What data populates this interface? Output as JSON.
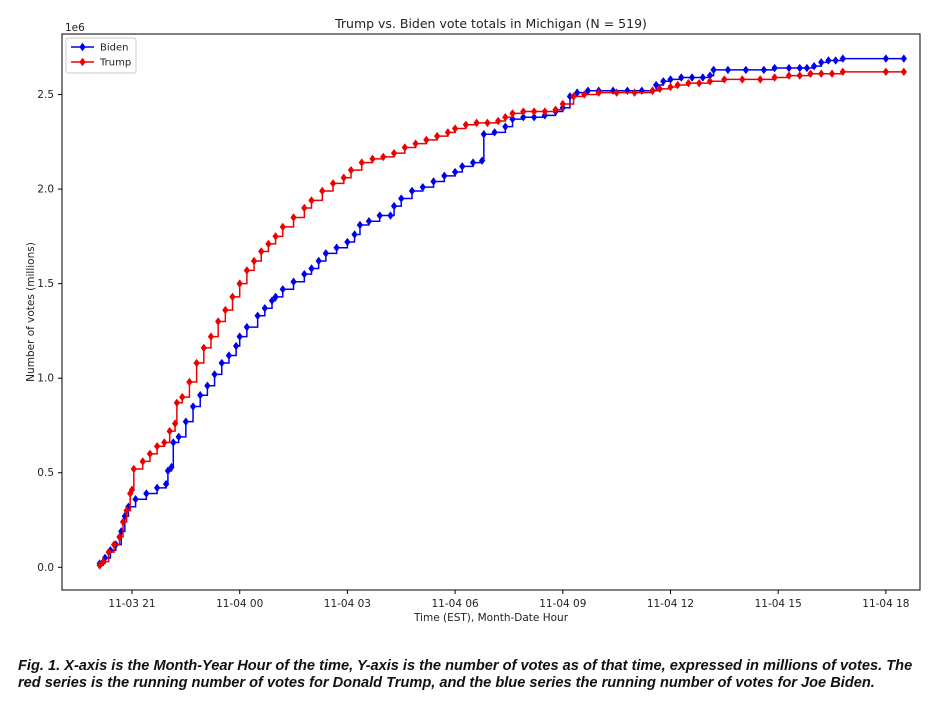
{
  "chart_data": {
    "type": "line",
    "title": "Trump vs. Biden vote totals in Michigan (N = 519)",
    "xlabel": "Time (EST), Month-Date Hour",
    "ylabel": "Number of votes (millions)",
    "y_offset_label": "1e6",
    "x_unit": "hours after 11-03 00:00 EST",
    "xlim": [
      19.05,
      42.95
    ],
    "ylim": [
      -0.12,
      2.82
    ],
    "x_ticks": [
      {
        "value": 21,
        "label": "11-03 21"
      },
      {
        "value": 24,
        "label": "11-04 00"
      },
      {
        "value": 27,
        "label": "11-04 03"
      },
      {
        "value": 30,
        "label": "11-04 06"
      },
      {
        "value": 33,
        "label": "11-04 09"
      },
      {
        "value": 36,
        "label": "11-04 12"
      },
      {
        "value": 39,
        "label": "11-04 15"
      },
      {
        "value": 42,
        "label": "11-04 18"
      }
    ],
    "y_ticks": [
      {
        "value": 0.0,
        "label": "0.0"
      },
      {
        "value": 0.5,
        "label": "0.5"
      },
      {
        "value": 1.0,
        "label": "1.0"
      },
      {
        "value": 1.5,
        "label": "1.5"
      },
      {
        "value": 2.0,
        "label": "2.0"
      },
      {
        "value": 2.5,
        "label": "2.5"
      }
    ],
    "legend_position": "top-left",
    "series": [
      {
        "name": "Biden",
        "color": "#0000ee",
        "marker": "diamond",
        "points": [
          [
            20.1,
            0.02
          ],
          [
            20.25,
            0.05
          ],
          [
            20.4,
            0.09
          ],
          [
            20.55,
            0.12
          ],
          [
            20.7,
            0.19
          ],
          [
            20.8,
            0.27
          ],
          [
            20.9,
            0.32
          ],
          [
            21.1,
            0.36
          ],
          [
            21.4,
            0.39
          ],
          [
            21.7,
            0.42
          ],
          [
            21.95,
            0.44
          ],
          [
            22.0,
            0.51
          ],
          [
            22.1,
            0.53
          ],
          [
            22.15,
            0.66
          ],
          [
            22.3,
            0.69
          ],
          [
            22.5,
            0.77
          ],
          [
            22.7,
            0.85
          ],
          [
            22.9,
            0.91
          ],
          [
            23.1,
            0.96
          ],
          [
            23.3,
            1.02
          ],
          [
            23.5,
            1.08
          ],
          [
            23.7,
            1.12
          ],
          [
            23.9,
            1.17
          ],
          [
            24.0,
            1.22
          ],
          [
            24.2,
            1.27
          ],
          [
            24.5,
            1.33
          ],
          [
            24.7,
            1.37
          ],
          [
            24.9,
            1.41
          ],
          [
            25.0,
            1.43
          ],
          [
            25.2,
            1.47
          ],
          [
            25.5,
            1.51
          ],
          [
            25.8,
            1.55
          ],
          [
            26.0,
            1.58
          ],
          [
            26.2,
            1.62
          ],
          [
            26.4,
            1.66
          ],
          [
            26.7,
            1.69
          ],
          [
            27.0,
            1.72
          ],
          [
            27.2,
            1.76
          ],
          [
            27.35,
            1.81
          ],
          [
            27.6,
            1.83
          ],
          [
            27.9,
            1.86
          ],
          [
            28.2,
            1.86
          ],
          [
            28.3,
            1.91
          ],
          [
            28.5,
            1.95
          ],
          [
            28.8,
            1.99
          ],
          [
            29.1,
            2.01
          ],
          [
            29.4,
            2.04
          ],
          [
            29.7,
            2.07
          ],
          [
            30.0,
            2.09
          ],
          [
            30.2,
            2.12
          ],
          [
            30.5,
            2.14
          ],
          [
            30.75,
            2.15
          ],
          [
            30.8,
            2.29
          ],
          [
            31.1,
            2.3
          ],
          [
            31.4,
            2.33
          ],
          [
            31.6,
            2.37
          ],
          [
            31.9,
            2.38
          ],
          [
            32.2,
            2.38
          ],
          [
            32.5,
            2.39
          ],
          [
            32.8,
            2.41
          ],
          [
            33.0,
            2.43
          ],
          [
            33.2,
            2.49
          ],
          [
            33.4,
            2.51
          ],
          [
            33.7,
            2.52
          ],
          [
            34.0,
            2.52
          ],
          [
            34.4,
            2.52
          ],
          [
            34.8,
            2.52
          ],
          [
            35.2,
            2.52
          ],
          [
            35.5,
            2.52
          ],
          [
            35.6,
            2.55
          ],
          [
            35.8,
            2.57
          ],
          [
            36.0,
            2.58
          ],
          [
            36.3,
            2.59
          ],
          [
            36.6,
            2.59
          ],
          [
            36.9,
            2.59
          ],
          [
            37.1,
            2.6
          ],
          [
            37.2,
            2.63
          ],
          [
            37.6,
            2.63
          ],
          [
            38.1,
            2.63
          ],
          [
            38.6,
            2.63
          ],
          [
            38.9,
            2.64
          ],
          [
            39.3,
            2.64
          ],
          [
            39.6,
            2.64
          ],
          [
            39.8,
            2.64
          ],
          [
            40.0,
            2.65
          ],
          [
            40.2,
            2.67
          ],
          [
            40.4,
            2.68
          ],
          [
            40.6,
            2.68
          ],
          [
            40.8,
            2.69
          ],
          [
            42.0,
            2.69
          ],
          [
            42.5,
            2.69
          ]
        ]
      },
      {
        "name": "Trump",
        "color": "#ee0000",
        "marker": "diamond",
        "points": [
          [
            20.1,
            0.01
          ],
          [
            20.2,
            0.03
          ],
          [
            20.35,
            0.08
          ],
          [
            20.5,
            0.12
          ],
          [
            20.65,
            0.16
          ],
          [
            20.75,
            0.24
          ],
          [
            20.85,
            0.3
          ],
          [
            20.95,
            0.39
          ],
          [
            21.0,
            0.41
          ],
          [
            21.05,
            0.52
          ],
          [
            21.3,
            0.56
          ],
          [
            21.5,
            0.6
          ],
          [
            21.7,
            0.64
          ],
          [
            21.9,
            0.66
          ],
          [
            22.05,
            0.72
          ],
          [
            22.2,
            0.76
          ],
          [
            22.25,
            0.87
          ],
          [
            22.4,
            0.9
          ],
          [
            22.6,
            0.98
          ],
          [
            22.8,
            1.08
          ],
          [
            23.0,
            1.16
          ],
          [
            23.2,
            1.22
          ],
          [
            23.4,
            1.3
          ],
          [
            23.6,
            1.36
          ],
          [
            23.8,
            1.43
          ],
          [
            24.0,
            1.5
          ],
          [
            24.2,
            1.57
          ],
          [
            24.4,
            1.62
          ],
          [
            24.6,
            1.67
          ],
          [
            24.8,
            1.71
          ],
          [
            25.0,
            1.75
          ],
          [
            25.2,
            1.8
          ],
          [
            25.5,
            1.85
          ],
          [
            25.8,
            1.9
          ],
          [
            26.0,
            1.94
          ],
          [
            26.3,
            1.99
          ],
          [
            26.6,
            2.03
          ],
          [
            26.9,
            2.06
          ],
          [
            27.1,
            2.1
          ],
          [
            27.4,
            2.14
          ],
          [
            27.7,
            2.16
          ],
          [
            28.0,
            2.17
          ],
          [
            28.3,
            2.19
          ],
          [
            28.6,
            2.22
          ],
          [
            28.9,
            2.24
          ],
          [
            29.2,
            2.26
          ],
          [
            29.5,
            2.28
          ],
          [
            29.8,
            2.3
          ],
          [
            30.0,
            2.32
          ],
          [
            30.3,
            2.34
          ],
          [
            30.6,
            2.35
          ],
          [
            30.9,
            2.35
          ],
          [
            31.2,
            2.36
          ],
          [
            31.4,
            2.38
          ],
          [
            31.6,
            2.4
          ],
          [
            31.9,
            2.41
          ],
          [
            32.2,
            2.41
          ],
          [
            32.5,
            2.41
          ],
          [
            32.8,
            2.42
          ],
          [
            33.0,
            2.45
          ],
          [
            33.3,
            2.49
          ],
          [
            33.6,
            2.5
          ],
          [
            34.0,
            2.51
          ],
          [
            34.5,
            2.51
          ],
          [
            35.0,
            2.51
          ],
          [
            35.5,
            2.52
          ],
          [
            35.7,
            2.53
          ],
          [
            36.0,
            2.54
          ],
          [
            36.2,
            2.55
          ],
          [
            36.5,
            2.56
          ],
          [
            36.8,
            2.56
          ],
          [
            37.1,
            2.57
          ],
          [
            37.5,
            2.58
          ],
          [
            38.0,
            2.58
          ],
          [
            38.5,
            2.58
          ],
          [
            38.9,
            2.59
          ],
          [
            39.3,
            2.6
          ],
          [
            39.6,
            2.6
          ],
          [
            39.9,
            2.61
          ],
          [
            40.2,
            2.61
          ],
          [
            40.5,
            2.61
          ],
          [
            40.8,
            2.62
          ],
          [
            42.0,
            2.62
          ],
          [
            42.5,
            2.62
          ]
        ]
      }
    ]
  },
  "caption": "Fig. 1. X-axis is the Month-Year Hour of the time, Y-axis is the number of votes as of that time, expressed in millions of votes.  The red series is the running number of votes for Donald Trump, and the blue series the running number of votes for Joe Biden."
}
